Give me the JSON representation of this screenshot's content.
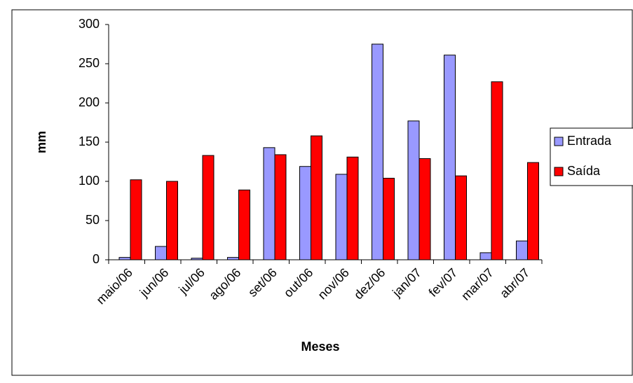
{
  "chart_data": {
    "type": "bar",
    "x_label": "Meses",
    "y_label": "mm",
    "categories": [
      "maio/06",
      "jun/06",
      "jul/06",
      "ago/06",
      "set/06",
      "out/06",
      "nov/06",
      "dez/06",
      "jan/07",
      "fev/07",
      "mar/07",
      "abr/07"
    ],
    "series": [
      {
        "name": "Entrada",
        "color": "#9999ff",
        "values": [
          3,
          17,
          2,
          3,
          143,
          119,
          109,
          275,
          177,
          261,
          9,
          24
        ]
      },
      {
        "name": "Saída",
        "color": "#ff0000",
        "values": [
          102,
          100,
          133,
          89,
          134,
          158,
          131,
          104,
          129,
          107,
          227,
          124
        ]
      }
    ],
    "ylim": [
      0,
      300
    ],
    "yticks": [
      0,
      50,
      100,
      150,
      200,
      250,
      300
    ],
    "grid": false,
    "legend": "right"
  }
}
